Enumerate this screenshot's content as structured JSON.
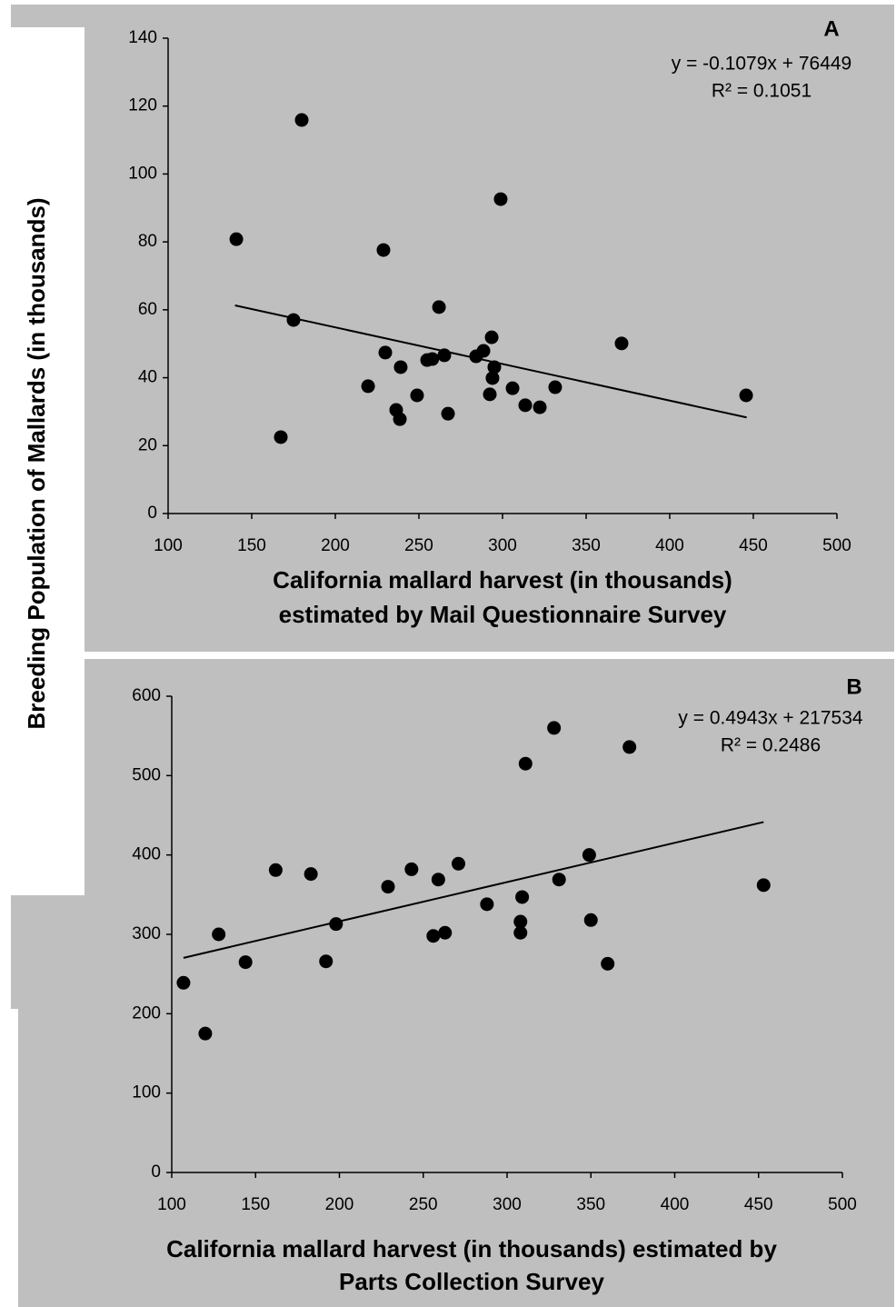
{
  "y_label": "Breeding Population of Mallards (in thousands)",
  "chart_data": [
    {
      "type": "scatter",
      "panel": "A",
      "equation": "y = -0.1079x + 76449",
      "r_squared": "R² = 0.1051",
      "x_label": [
        "California mallard harvest (in thousands)",
        "estimated by Mail Questionnaire Survey"
      ],
      "x": [
        140.8,
        179.9,
        298.9,
        228.8,
        175,
        262,
        293.5,
        229.9,
        239.1,
        254.9,
        265.2,
        258,
        288.6,
        284.2,
        295.1,
        294,
        292.4,
        219.6,
        248.9,
        236.4,
        238.6,
        267.4,
        306,
        313.6,
        322.3,
        331.5,
        167.4,
        371.2,
        445.7
      ],
      "values": [
        80.8,
        115.9,
        92.6,
        77.6,
        57,
        60.8,
        51.9,
        47.4,
        43.1,
        45.2,
        46.6,
        45.5,
        47.9,
        46.3,
        43.1,
        39.9,
        35.1,
        37.5,
        34.8,
        30.5,
        27.8,
        29.4,
        36.9,
        31.9,
        31.3,
        37.2,
        22.5,
        50.1,
        34.8
      ],
      "color": "#000000",
      "trendline": {
        "x": [
          140,
          446
        ],
        "y": [
          61.3,
          28.3
        ]
      },
      "xlim": [
        100,
        500
      ],
      "xticks": [
        100,
        150,
        200,
        250,
        300,
        350,
        400,
        450,
        500
      ],
      "ylim": [
        0,
        140
      ],
      "yticks": [
        0,
        20,
        40,
        60,
        80,
        100,
        120,
        140
      ]
    },
    {
      "type": "scatter",
      "panel": "B",
      "equation": "y = 0.4943x + 217534",
      "r_squared": "R² = 0.2486",
      "x_label": [
        "California mallard harvest (in thousands) estimated by",
        "Parts Collection Survey"
      ],
      "x": [
        107,
        120,
        128,
        144,
        162,
        183,
        198,
        192,
        229,
        243,
        259,
        271,
        256,
        263,
        288,
        309,
        308,
        308,
        311,
        328,
        331,
        349,
        350,
        360,
        373,
        453
      ],
      "values": [
        239,
        175,
        300,
        265,
        381,
        376,
        313,
        266,
        360,
        382,
        369,
        389,
        298,
        302,
        338,
        347,
        316,
        302,
        515,
        560,
        369,
        400,
        318,
        263,
        536,
        362
      ],
      "color": "#000000",
      "trendline": {
        "x": [
          107,
          453
        ],
        "y": [
          270.4,
          441.5
        ]
      },
      "xlim": [
        100,
        500
      ],
      "xticks": [
        100,
        150,
        200,
        250,
        300,
        350,
        400,
        450,
        500
      ],
      "ylim": [
        0,
        600
      ],
      "yticks": [
        0,
        100,
        200,
        300,
        400,
        500,
        600
      ]
    }
  ]
}
